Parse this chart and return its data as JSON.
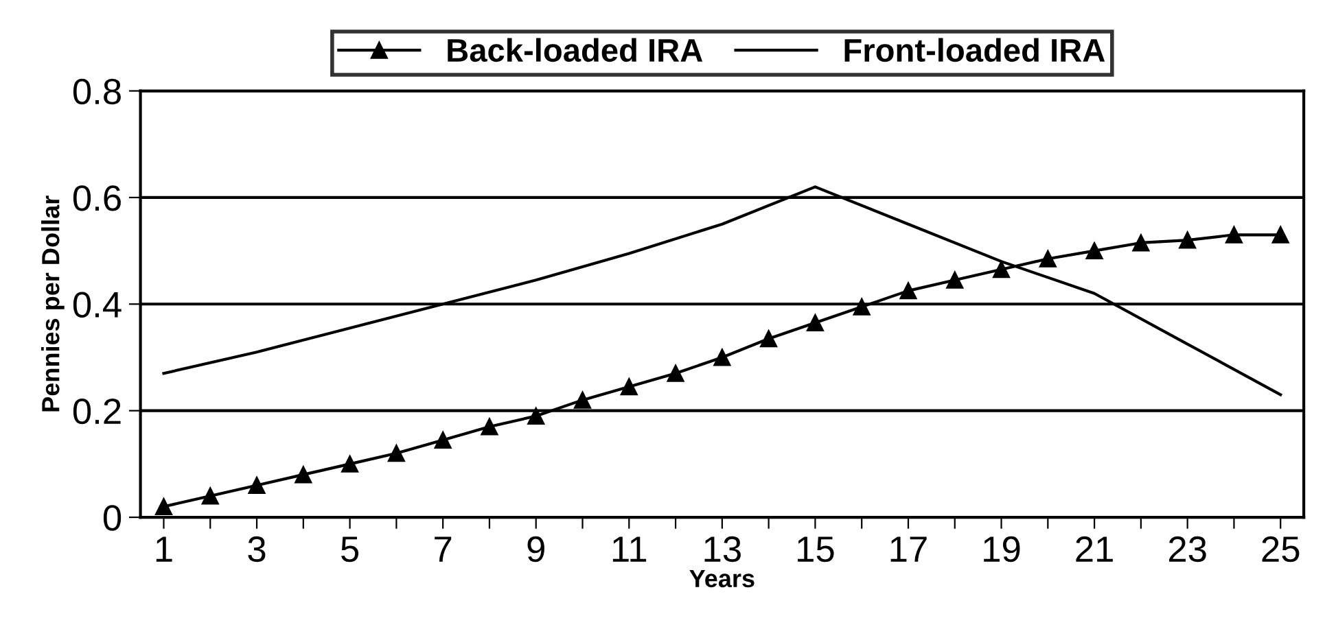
{
  "chart_data": {
    "type": "line",
    "xlabel": "Years",
    "ylabel": "Pennies per Dollar",
    "x": [
      1,
      2,
      3,
      4,
      5,
      6,
      7,
      8,
      9,
      10,
      11,
      12,
      13,
      14,
      15,
      16,
      17,
      18,
      19,
      20,
      21,
      22,
      23,
      24,
      25
    ],
    "series": [
      {
        "name": "Back-loaded IRA",
        "color": "#000000",
        "marker": "triangle",
        "values": [
          0.02,
          0.04,
          0.06,
          0.08,
          0.1,
          0.12,
          0.145,
          0.17,
          0.19,
          0.22,
          0.245,
          0.27,
          0.3,
          0.335,
          0.365,
          0.395,
          0.425,
          0.445,
          0.465,
          0.485,
          0.5,
          0.515,
          0.52,
          0.53,
          0.53
        ]
      },
      {
        "name": "Front-loaded IRA",
        "color": "#000000",
        "marker": "none",
        "x": [
          1,
          3,
          5,
          7,
          9,
          11,
          13,
          15,
          17,
          19,
          21,
          23,
          25
        ],
        "values": [
          0.27,
          0.31,
          0.355,
          0.4,
          0.445,
          0.495,
          0.55,
          0.62,
          0.55,
          0.48,
          0.42,
          0.325,
          0.23
        ]
      }
    ],
    "xlim": [
      0.5,
      25.5
    ],
    "ylim": [
      0,
      0.8
    ],
    "xticks": [
      1,
      {
        "value": 2,
        "label": null
      },
      3,
      {
        "value": 4,
        "label": null
      },
      5,
      {
        "value": 6,
        "label": null
      },
      7,
      {
        "value": 8,
        "label": null
      },
      9,
      {
        "value": 10,
        "label": null
      },
      11,
      {
        "value": 12,
        "label": null
      },
      13,
      {
        "value": 14,
        "label": null
      },
      15,
      {
        "value": 16,
        "label": null
      },
      17,
      {
        "value": 18,
        "label": null
      },
      19,
      {
        "value": 20,
        "label": null
      },
      21,
      {
        "value": 22,
        "label": null
      },
      23,
      {
        "value": 24,
        "label": null
      },
      25
    ],
    "yticks": [
      0,
      0.2,
      0.4,
      0.6,
      0.8
    ],
    "grid": "y",
    "legend": "top",
    "line_style": "solid"
  }
}
